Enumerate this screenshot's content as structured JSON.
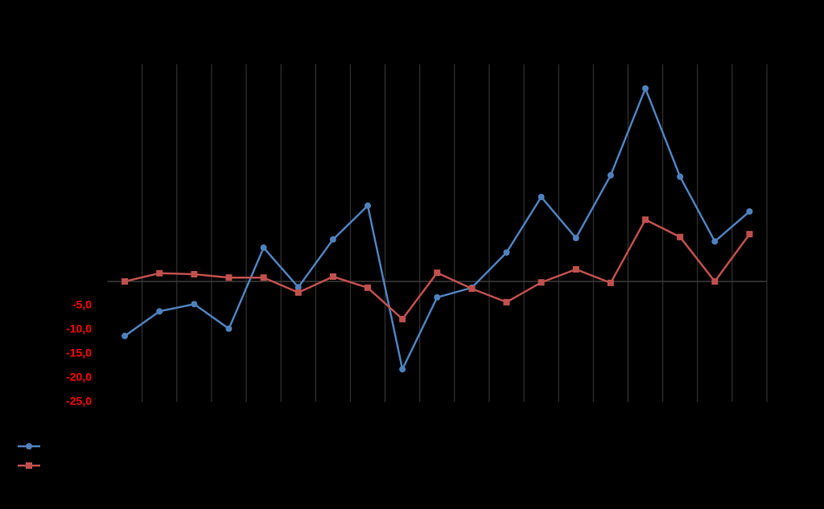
{
  "chart_data": {
    "type": "line",
    "categories": [
      null,
      null,
      null,
      null,
      null,
      null,
      null,
      null,
      null,
      null,
      null,
      null,
      null,
      null,
      null,
      null,
      null,
      null,
      null
    ],
    "series": [
      {
        "color": "#4f81bd",
        "marker": "circle",
        "values": [
          -11.3,
          -6.2,
          -4.7,
          -9.8,
          7.0,
          -1.2,
          8.7,
          15.7,
          -18.2,
          -3.3,
          -1.3,
          6.0,
          17.5,
          9.0,
          22.0,
          40.0,
          21.7,
          8.3,
          14.5
        ]
      },
      {
        "color": "#c0504d",
        "marker": "square",
        "values": [
          0.0,
          1.7,
          1.5,
          0.8,
          0.8,
          -2.3,
          1.0,
          -1.3,
          -7.8,
          1.8,
          -1.5,
          -4.3,
          -0.2,
          2.5,
          -0.3,
          12.8,
          9.2,
          0.0,
          9.8
        ]
      }
    ],
    "ylim": [
      -25,
      45
    ],
    "yticks": [
      {
        "value": -5,
        "label": "-5,0"
      },
      {
        "value": -10,
        "label": "-10,0"
      },
      {
        "value": -15,
        "label": "-15,0"
      },
      {
        "value": -20,
        "label": "-20,0"
      },
      {
        "value": -25,
        "label": "-25,0"
      }
    ],
    "tick_label_color": "#ff0000",
    "vertical_grid": true
  }
}
